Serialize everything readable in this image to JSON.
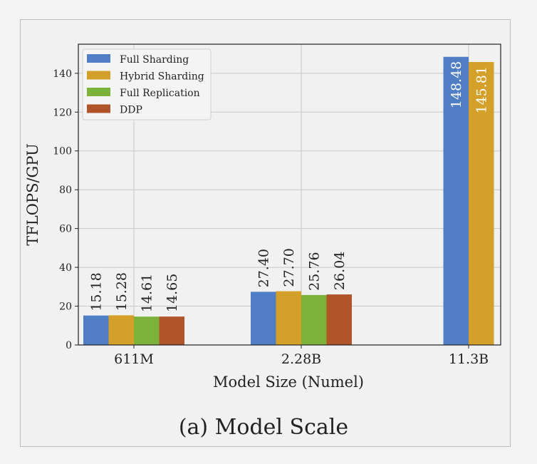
{
  "chart_data": {
    "type": "bar",
    "title": "",
    "caption": "(a) Model Scale",
    "xlabel": "Model Size (Numel)",
    "ylabel": "TFLOPS/GPU",
    "categories": [
      "611M",
      "2.28B",
      "11.3B"
    ],
    "ylim": [
      0,
      155
    ],
    "yticks": [
      0,
      20,
      40,
      60,
      80,
      100,
      120,
      140
    ],
    "grid": true,
    "legend_position": "top-left",
    "series": [
      {
        "name": "Full Sharding",
        "color": "#4f7ec4",
        "values": [
          15.18,
          27.4,
          148.48
        ]
      },
      {
        "name": "Hybrid Sharding",
        "color": "#d4a02a",
        "values": [
          15.28,
          27.7,
          145.81
        ]
      },
      {
        "name": "Full Replication",
        "color": "#7bb33a",
        "values": [
          14.61,
          25.76,
          null
        ]
      },
      {
        "name": "DDP",
        "color": "#b0552a",
        "values": [
          14.65,
          26.04,
          null
        ]
      }
    ]
  }
}
